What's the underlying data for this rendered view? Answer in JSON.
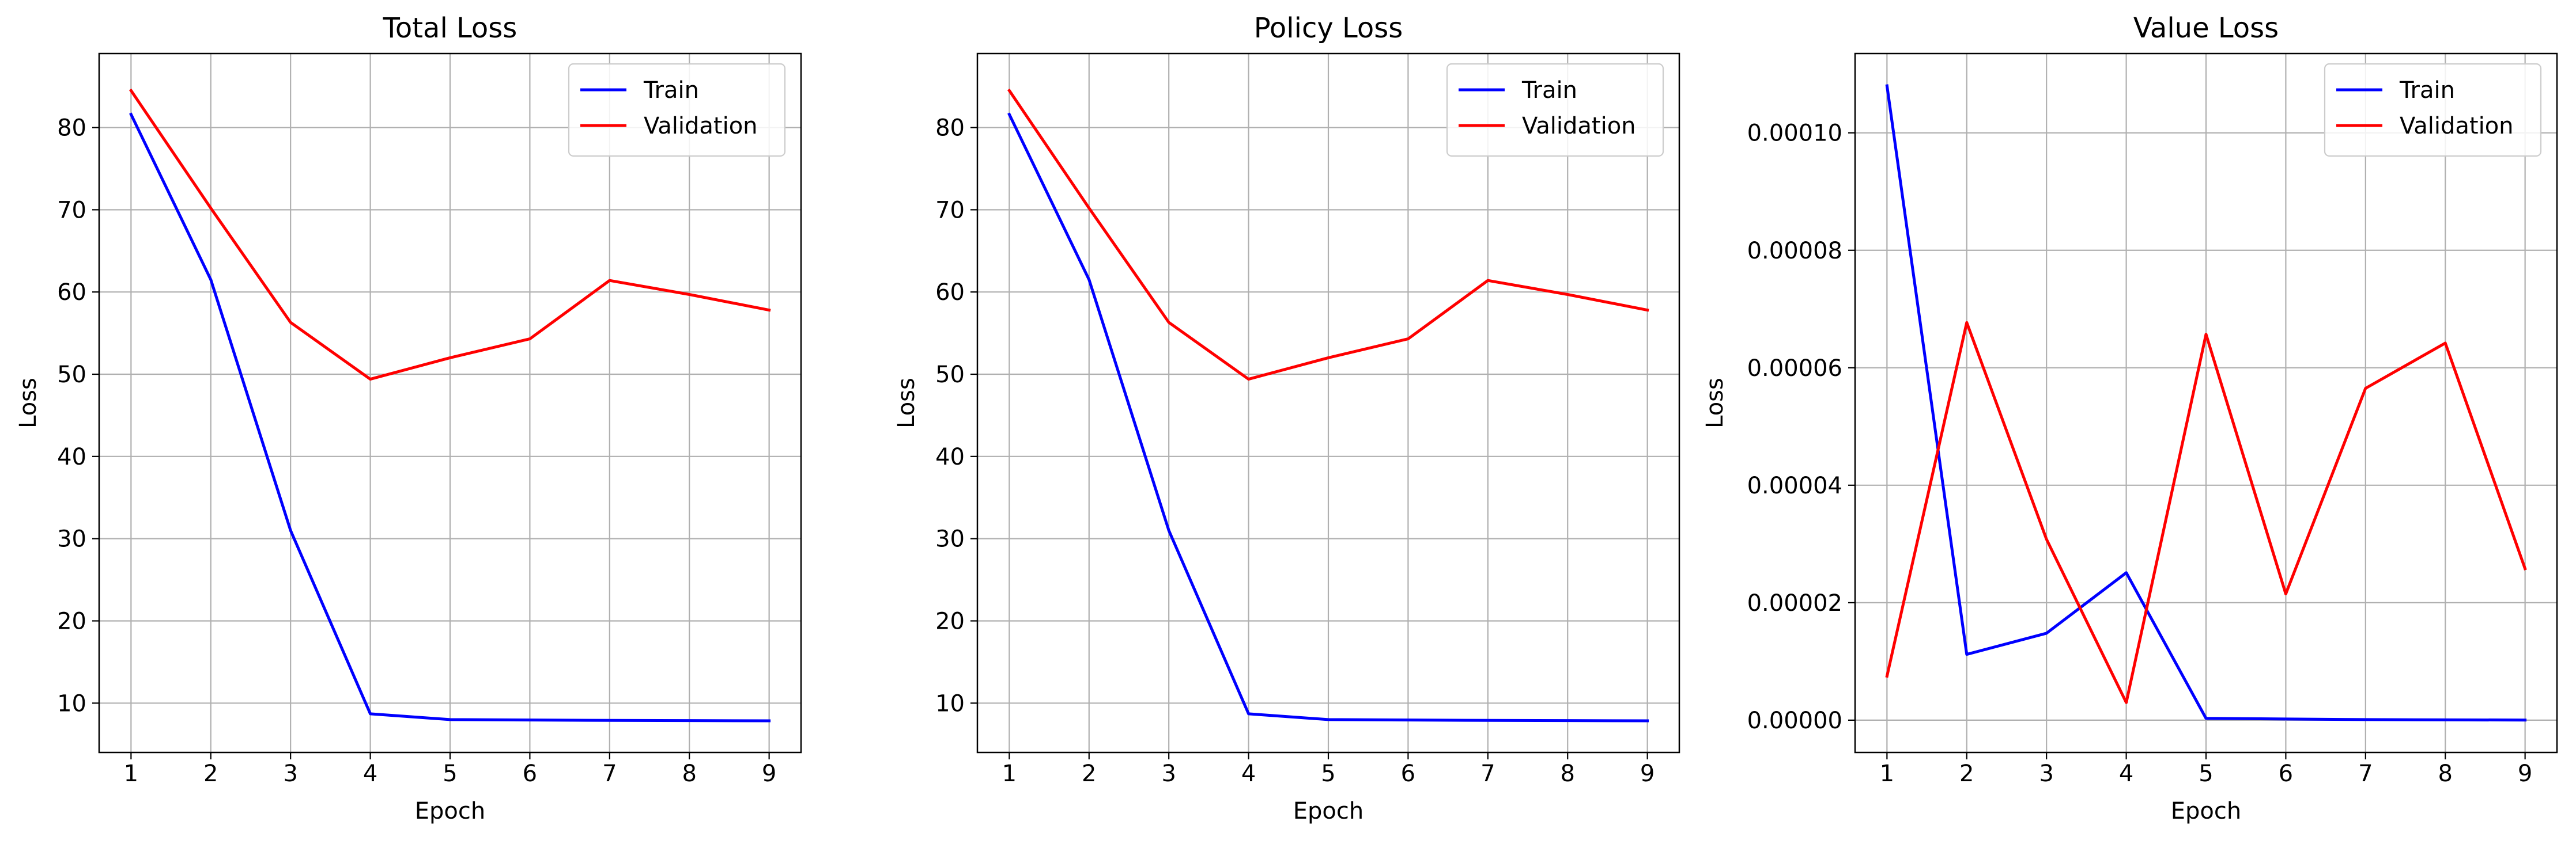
{
  "colors": {
    "train": "#0000ff",
    "validation": "#ff0000",
    "grid": "#b0b0b0",
    "axes": "#000000"
  },
  "chart_data": [
    {
      "type": "line",
      "title": "Total Loss",
      "xlabel": "Epoch",
      "ylabel": "Loss",
      "x": [
        1,
        2,
        3,
        4,
        5,
        6,
        7,
        8,
        9
      ],
      "xlim": [
        0.6,
        9.4
      ],
      "ylim": [
        4,
        89
      ],
      "yticks": [
        10,
        20,
        30,
        40,
        50,
        60,
        70,
        80
      ],
      "ytick_labels": [
        "10",
        "20",
        "30",
        "40",
        "50",
        "60",
        "70",
        "80"
      ],
      "grid": true,
      "legend": "top-right",
      "series": [
        {
          "name": "Train",
          "color": "#0000ff",
          "values": [
            81.6,
            61.5,
            31.0,
            8.7,
            8.0,
            7.95,
            7.9,
            7.88,
            7.85
          ]
        },
        {
          "name": "Validation",
          "color": "#ff0000",
          "values": [
            84.5,
            70.2,
            56.3,
            49.4,
            52.0,
            54.3,
            61.4,
            59.7,
            57.8
          ]
        }
      ]
    },
    {
      "type": "line",
      "title": "Policy Loss",
      "xlabel": "Epoch",
      "ylabel": "Loss",
      "x": [
        1,
        2,
        3,
        4,
        5,
        6,
        7,
        8,
        9
      ],
      "xlim": [
        0.6,
        9.4
      ],
      "ylim": [
        4,
        89
      ],
      "yticks": [
        10,
        20,
        30,
        40,
        50,
        60,
        70,
        80
      ],
      "ytick_labels": [
        "10",
        "20",
        "30",
        "40",
        "50",
        "60",
        "70",
        "80"
      ],
      "grid": true,
      "legend": "top-right",
      "series": [
        {
          "name": "Train",
          "color": "#0000ff",
          "values": [
            81.6,
            61.5,
            31.0,
            8.7,
            8.0,
            7.95,
            7.9,
            7.88,
            7.85
          ]
        },
        {
          "name": "Validation",
          "color": "#ff0000",
          "values": [
            84.5,
            70.2,
            56.3,
            49.4,
            52.0,
            54.3,
            61.4,
            59.7,
            57.8
          ]
        }
      ]
    },
    {
      "type": "line",
      "title": "Value Loss",
      "xlabel": "Epoch",
      "ylabel": "Loss",
      "x": [
        1,
        2,
        3,
        4,
        5,
        6,
        7,
        8,
        9
      ],
      "xlim": [
        0.6,
        9.4
      ],
      "ylim": [
        -5.5e-06,
        0.0001135
      ],
      "yticks": [
        0,
        2e-05,
        4e-05,
        6e-05,
        8e-05,
        0.0001
      ],
      "ytick_labels": [
        "0.00000",
        "0.00002",
        "0.00004",
        "0.00006",
        "0.00008",
        "0.00010"
      ],
      "grid": true,
      "legend": "top-right",
      "series": [
        {
          "name": "Train",
          "color": "#0000ff",
          "values": [
            0.000108,
            1.12e-05,
            1.48e-05,
            2.51e-05,
            3e-07,
            2e-07,
            1e-07,
            5e-08,
            2e-08
          ]
        },
        {
          "name": "Validation",
          "color": "#ff0000",
          "values": [
            7.5e-06,
            6.77e-05,
            3.08e-05,
            3e-06,
            6.57e-05,
            2.15e-05,
            5.65e-05,
            6.42e-05,
            2.58e-05
          ]
        }
      ]
    }
  ]
}
